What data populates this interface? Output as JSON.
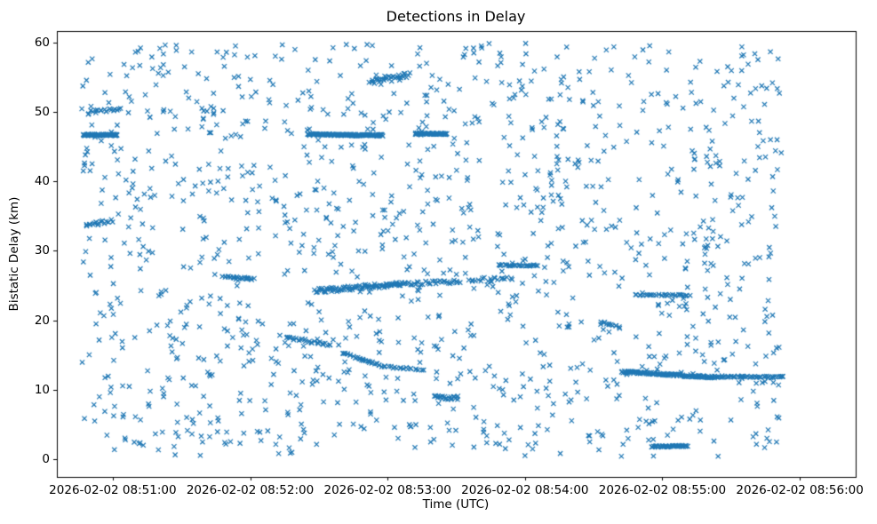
{
  "chart_data": {
    "type": "scatter",
    "title": "Detections in Delay",
    "xlabel": "Time (UTC)",
    "ylabel": "Bistatic Delay (km)",
    "marker": "x",
    "color": "#1f77b4",
    "marker_size_px": 6,
    "marker_line_width": 1.2,
    "grid": false,
    "legend": null,
    "x_base_time": "2026-02-02 08:51:00",
    "x_tick_labels": [
      "2026-02-02 08:51:00",
      "2026-02-02 08:52:00",
      "2026-02-02 08:53:00",
      "2026-02-02 08:54:00",
      "2026-02-02 08:55:00",
      "2026-02-02 08:56:00"
    ],
    "x_tick_seconds": [
      0,
      60,
      120,
      180,
      240,
      300
    ],
    "xlim_seconds": [
      -24.4,
      324.4
    ],
    "y_tick_values": [
      0,
      10,
      20,
      30,
      40,
      50,
      60
    ],
    "ylim": [
      -2.56,
      61.66
    ],
    "description": "Dense uniform clutter of radar detections (x markers) spanning 2026-02-02 08:50:46 to 08:55:52 UTC and 0.4-59.9 km bistatic delay, with several dense near-horizontal track streaks.",
    "background_scatter": {
      "distribution": "uniform",
      "count": 1300,
      "t_seconds_range": [
        -14,
        292
      ],
      "y_range": [
        0.4,
        59.9
      ],
      "seed": 42
    },
    "tracks": [
      {
        "t0": -13,
        "t1": 2,
        "y0": 46.7,
        "y1": 46.7,
        "n": 70,
        "jitter_y": 0.12
      },
      {
        "t0": 85,
        "t1": 118,
        "y0": 46.75,
        "y1": 46.65,
        "n": 130,
        "jitter_y": 0.12
      },
      {
        "t0": 132,
        "t1": 146,
        "y0": 46.9,
        "y1": 46.85,
        "n": 60,
        "jitter_y": 0.1
      },
      {
        "t0": 88,
        "t1": 126,
        "y0": 24.2,
        "y1": 25.2,
        "n": 80,
        "jitter_y": 0.35
      },
      {
        "t0": 126,
        "t1": 152,
        "y0": 25.2,
        "y1": 25.6,
        "n": 35,
        "jitter_y": 0.25
      },
      {
        "t0": 155,
        "t1": 175,
        "y0": 25.8,
        "y1": 26.1,
        "n": 20,
        "jitter_y": 0.3
      },
      {
        "t0": 48,
        "t1": 62,
        "y0": 26.4,
        "y1": 25.9,
        "n": 22,
        "jitter_y": 0.15
      },
      {
        "t0": 75,
        "t1": 96,
        "y0": 17.6,
        "y1": 16.4,
        "n": 26,
        "jitter_y": 0.2
      },
      {
        "t0": 100,
        "t1": 119,
        "y0": 15.3,
        "y1": 13.3,
        "n": 30,
        "jitter_y": 0.15
      },
      {
        "t0": 119,
        "t1": 136,
        "y0": 13.3,
        "y1": 12.9,
        "n": 18,
        "jitter_y": 0.12
      },
      {
        "t0": 112,
        "t1": 130,
        "y0": 54.2,
        "y1": 55.3,
        "n": 32,
        "jitter_y": 0.4
      },
      {
        "t0": 140,
        "t1": 151,
        "y0": 9.0,
        "y1": 8.7,
        "n": 22,
        "jitter_y": 0.25
      },
      {
        "t0": 168,
        "t1": 186,
        "y0": 27.9,
        "y1": 27.9,
        "n": 26,
        "jitter_y": 0.12
      },
      {
        "t0": 222,
        "t1": 263,
        "y0": 12.6,
        "y1": 11.8,
        "n": 120,
        "jitter_y": 0.15
      },
      {
        "t0": 263,
        "t1": 293,
        "y0": 11.9,
        "y1": 11.8,
        "n": 45,
        "jitter_y": 0.12
      },
      {
        "t0": 228,
        "t1": 252,
        "y0": 23.6,
        "y1": 23.6,
        "n": 30,
        "jitter_y": 0.12
      },
      {
        "t0": 235,
        "t1": 251,
        "y0": 1.8,
        "y1": 1.9,
        "n": 45,
        "jitter_y": 0.1
      },
      {
        "t0": 213,
        "t1": 222,
        "y0": 19.9,
        "y1": 18.8,
        "n": 12,
        "jitter_y": 0.2
      },
      {
        "t0": -11,
        "t1": 4,
        "y0": 49.9,
        "y1": 50.3,
        "n": 18,
        "jitter_y": 0.3
      },
      {
        "t0": -12,
        "t1": -2,
        "y0": 33.8,
        "y1": 34.2,
        "n": 14,
        "jitter_y": 0.25
      }
    ],
    "spine_color": "#000000",
    "tick_color": "#000000"
  }
}
